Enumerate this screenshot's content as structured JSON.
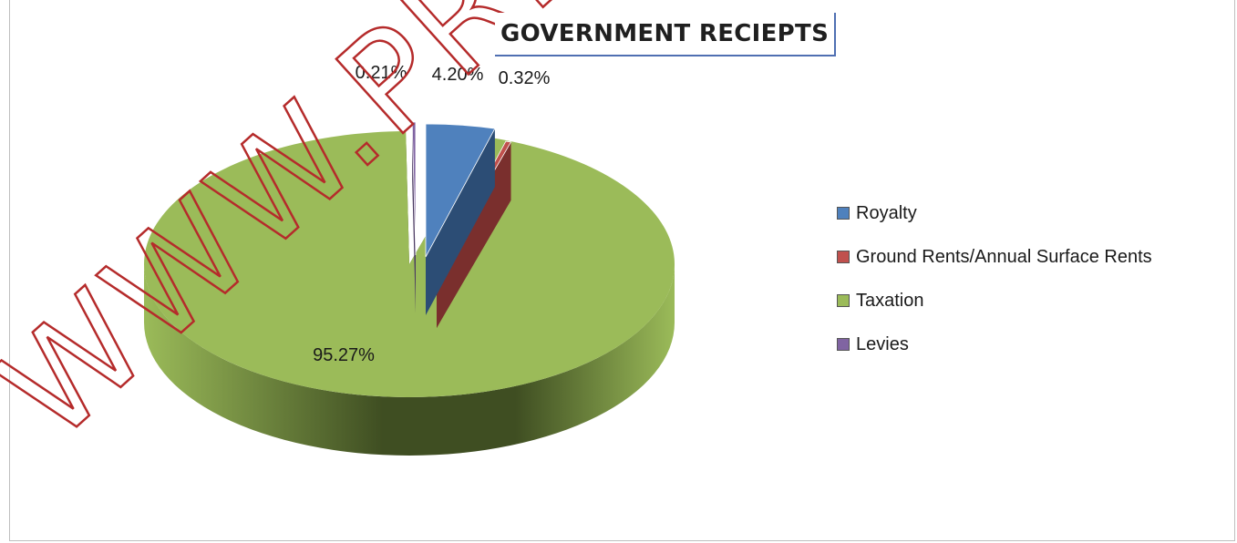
{
  "chart_data": {
    "type": "pie",
    "title": "GOVERNMENT RECIEPTS",
    "slices": [
      {
        "name": "Royalty",
        "value": 4.2,
        "label": "4.20%",
        "color": "#4f81bd",
        "dark": "#2c4d75"
      },
      {
        "name": "Ground Rents/Annual Surface Rents",
        "value": 0.32,
        "label": "0.32%",
        "color": "#c0504d",
        "dark": "#7a2f2d"
      },
      {
        "name": "Taxation",
        "value": 95.27,
        "label": "95.27%",
        "color": "#9bbb59",
        "dark": "#3f4e22"
      },
      {
        "name": "Levies",
        "value": 0.21,
        "label": "0.21%",
        "color": "#8064a2",
        "dark": "#4b3a62"
      }
    ],
    "legend_position": "right",
    "style": "3d-exploded"
  },
  "watermark": {
    "text": "WWW.PRE"
  }
}
